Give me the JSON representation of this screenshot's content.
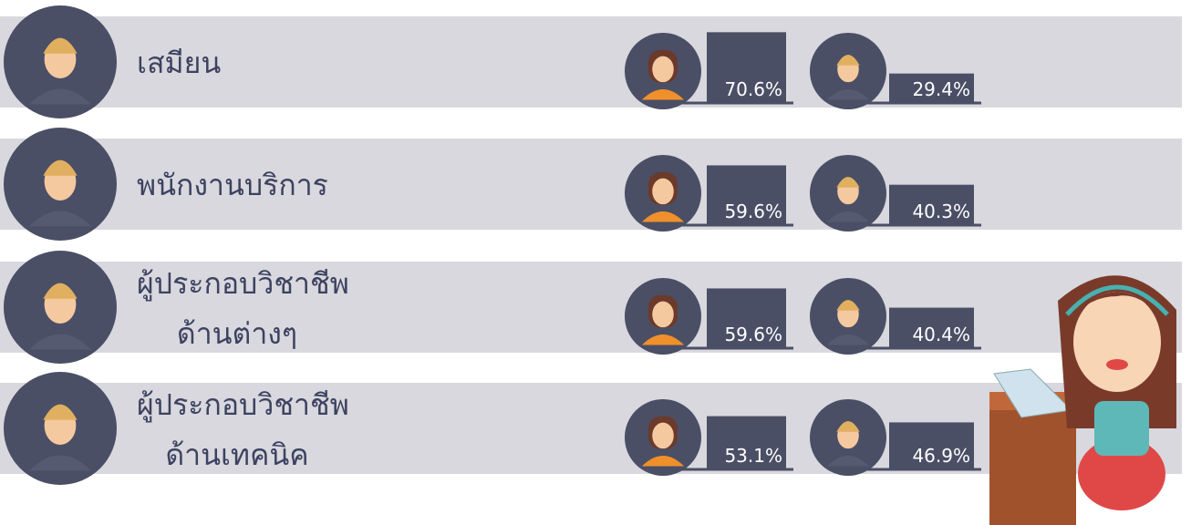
{
  "rows": [
    {
      "label": [
        "เสมียน"
      ],
      "female": {
        "value": 70.6,
        "label": "70.6%"
      },
      "male": {
        "value": 29.4,
        "label": "29.4%"
      }
    },
    {
      "label": [
        "พนักงานบริการ"
      ],
      "female": {
        "value": 59.6,
        "label": "59.6%"
      },
      "male": {
        "value": 40.3,
        "label": "40.3%"
      }
    },
    {
      "label": [
        "ผู้ประกอบวิชาชีพ",
        "ด้านต่างๆ"
      ],
      "female": {
        "value": 59.6,
        "label": "59.6%"
      },
      "male": {
        "value": 40.4,
        "label": "40.4%"
      }
    },
    {
      "label": [
        "ผู้ประกอบวิชาชีพ",
        "ด้านเทคนิค"
      ],
      "female": {
        "value": 53.1,
        "label": "53.1%"
      },
      "male": {
        "value": 46.9,
        "label": "46.9%"
      }
    }
  ]
}
